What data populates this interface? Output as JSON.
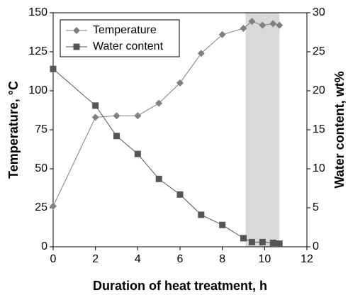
{
  "chart_data": {
    "type": "line",
    "x_label": "Duration of heat treatment, h",
    "y_label": "Temperature, °C",
    "y2_label": "Water content, wt%",
    "x": [
      0,
      2,
      3,
      4,
      5,
      6,
      7,
      8,
      9,
      9.4,
      9.9,
      10.4,
      10.7
    ],
    "series": [
      {
        "name": "Temperature",
        "color": "#808080",
        "marker": "diamond",
        "values": [
          26,
          83,
          84,
          84,
          92,
          105,
          124,
          136,
          140,
          144.5,
          142,
          143,
          142
        ]
      },
      {
        "name": "Water content",
        "color": "#555555",
        "marker": "square",
        "axis": "y2",
        "values": [
          22.8,
          18.1,
          14.2,
          11.9,
          8.7,
          6.7,
          4.1,
          2.8,
          1.1,
          0.6,
          0.6,
          0.5,
          0.4
        ]
      }
    ],
    "shaded_region": [
      9.1,
      10.7
    ],
    "xlim": [
      0,
      12
    ],
    "xticks": [
      0,
      2,
      4,
      6,
      8,
      10,
      12
    ],
    "ylim": [
      0,
      150
    ],
    "yticks": [
      0,
      25,
      50,
      75,
      100,
      125,
      150
    ],
    "y2lim": [
      0,
      30
    ],
    "y2ticks": [
      0,
      5,
      10,
      15,
      20,
      25,
      30
    ],
    "legend": "upper left"
  }
}
